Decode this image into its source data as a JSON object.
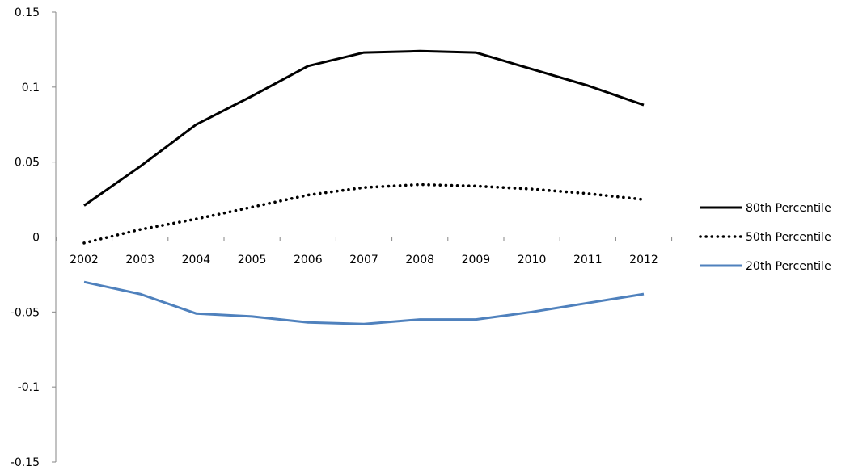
{
  "chart_data": {
    "type": "line",
    "categories": [
      "2002",
      "2003",
      "2004",
      "2005",
      "2006",
      "2007",
      "2008",
      "2009",
      "2010",
      "2011",
      "2012"
    ],
    "series": [
      {
        "name": "80th Percentile",
        "values": [
          0.021,
          0.047,
          0.075,
          0.094,
          0.114,
          0.123,
          0.124,
          0.123,
          0.112,
          0.101,
          0.088
        ],
        "color": "#000000",
        "style": "solid"
      },
      {
        "name": "50th Percentile",
        "values": [
          -0.004,
          0.005,
          0.012,
          0.02,
          0.028,
          0.033,
          0.035,
          0.034,
          0.032,
          0.029,
          0.025
        ],
        "color": "#000000",
        "style": "dotted"
      },
      {
        "name": "20th Percentile",
        "values": [
          -0.03,
          -0.038,
          -0.051,
          -0.053,
          -0.057,
          -0.058,
          -0.055,
          -0.055,
          -0.05,
          -0.044,
          -0.038
        ],
        "color": "#4f81bd",
        "style": "solid"
      }
    ],
    "y_ticks": [
      0.15,
      0.1,
      0.05,
      0,
      -0.05,
      -0.1,
      -0.15
    ],
    "y_tick_labels": [
      "0.15",
      "0.1",
      "0.05",
      "0",
      "-0.05",
      "-0.1",
      "-0.15"
    ],
    "ylim": [
      -0.15,
      0.15
    ],
    "title": "",
    "xlabel": "",
    "ylabel": "",
    "grid": false,
    "legend_position": "right"
  }
}
